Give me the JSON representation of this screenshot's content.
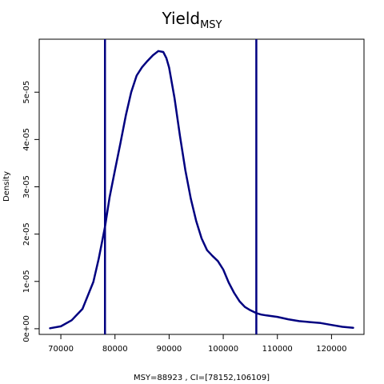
{
  "chart_data": {
    "type": "line",
    "title": "Yield",
    "title_subscript": "MSY",
    "xlabel": "MSY=88923 , CI=[78152,106109]",
    "ylabel": "Density",
    "xlim": [
      66000,
      126000
    ],
    "ylim": [
      -1.2e-06,
      6.12e-05
    ],
    "x_ticks": [
      70000,
      80000,
      90000,
      100000,
      110000,
      120000
    ],
    "x_tick_labels": [
      "70000",
      "80000",
      "90000",
      "100000",
      "110000",
      "120000"
    ],
    "y_ticks": [
      0,
      1e-05,
      2e-05,
      3e-05,
      4e-05,
      5e-05
    ],
    "y_tick_labels": [
      "0e+00",
      "1e-05",
      "2e-05",
      "3e-05",
      "4e-05",
      "5e-05"
    ],
    "grid": false,
    "line_color": "#000080",
    "series": [
      {
        "x": [
          68000,
          70000,
          72000,
          74000,
          76000,
          77000,
          78152,
          79000,
          80000,
          81000,
          82000,
          83000,
          84000,
          85000,
          86000,
          87000,
          88000,
          88923,
          89500,
          90000,
          91000,
          92000,
          93000,
          94000,
          95000,
          96000,
          97000,
          98000,
          99000,
          100000,
          101000,
          102000,
          103000,
          104000,
          105000,
          106109,
          107000,
          108000,
          110000,
          112000,
          114000,
          116000,
          118000,
          120000,
          122000,
          124000
        ],
        "y": [
          1e-07,
          5e-07,
          1.8e-06,
          4.2e-06,
          9.9e-06,
          1.48e-05,
          2.15e-05,
          2.78e-05,
          3.35e-05,
          3.92e-05,
          4.51e-05,
          5e-05,
          5.35e-05,
          5.53e-05,
          5.66e-05,
          5.78e-05,
          5.87e-05,
          5.85e-05,
          5.72e-05,
          5.52e-05,
          4.87e-05,
          4.08e-05,
          3.35e-05,
          2.75e-05,
          2.28e-05,
          1.91e-05,
          1.66e-05,
          1.54e-05,
          1.43e-05,
          1.25e-05,
          9.8e-06,
          7.6e-06,
          5.8e-06,
          4.6e-06,
          3.9e-06,
          3.3e-06,
          3e-06,
          2.8e-06,
          2.5e-06,
          2e-06,
          1.6e-06,
          1.4e-06,
          1.2e-06,
          8e-07,
          4e-07,
          2e-07
        ]
      }
    ],
    "vlines": [
      78152,
      106109
    ]
  }
}
